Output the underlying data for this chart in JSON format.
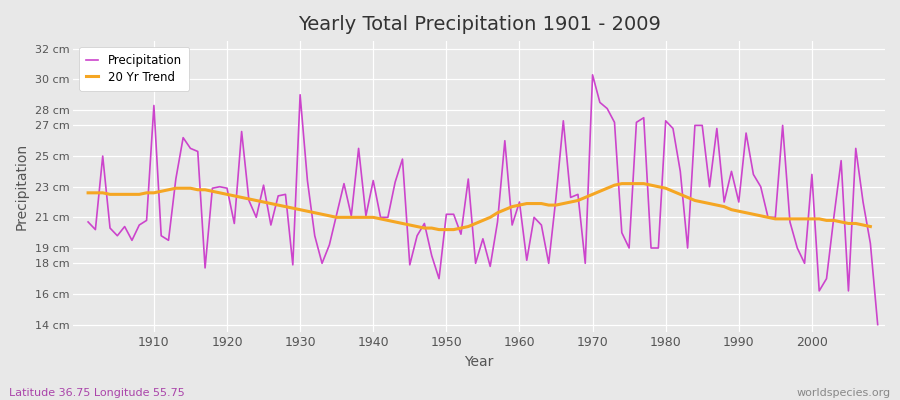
{
  "title": "Yearly Total Precipitation 1901 - 2009",
  "xlabel": "Year",
  "ylabel": "Precipitation",
  "subtitle_left": "Latitude 36.75 Longitude 55.75",
  "subtitle_right": "worldspecies.org",
  "bg_color": "#e8e8e8",
  "plot_bg_color": "#e8e8e8",
  "line_color": "#cc44cc",
  "trend_color": "#f5a623",
  "ylim": [
    13.5,
    32.5
  ],
  "yticks": [
    14,
    16,
    18,
    19,
    21,
    23,
    25,
    27,
    28,
    30,
    32
  ],
  "ytick_labels": [
    "14 cm",
    "16 cm",
    "18 cm",
    "19 cm",
    "21 cm",
    "23 cm",
    "25 cm",
    "27 cm",
    "28 cm",
    "30 cm",
    "32 cm"
  ],
  "xlim": [
    1899,
    2010
  ],
  "xticks": [
    1910,
    1920,
    1930,
    1940,
    1950,
    1960,
    1970,
    1980,
    1990,
    2000
  ],
  "years": [
    1901,
    1902,
    1903,
    1904,
    1905,
    1906,
    1907,
    1908,
    1909,
    1910,
    1911,
    1912,
    1913,
    1914,
    1915,
    1916,
    1917,
    1918,
    1919,
    1920,
    1921,
    1922,
    1923,
    1924,
    1925,
    1926,
    1927,
    1928,
    1929,
    1930,
    1931,
    1932,
    1933,
    1934,
    1935,
    1936,
    1937,
    1938,
    1939,
    1940,
    1941,
    1942,
    1943,
    1944,
    1945,
    1946,
    1947,
    1948,
    1949,
    1950,
    1951,
    1952,
    1953,
    1954,
    1955,
    1956,
    1957,
    1958,
    1959,
    1960,
    1961,
    1962,
    1963,
    1964,
    1965,
    1966,
    1967,
    1968,
    1969,
    1970,
    1971,
    1972,
    1973,
    1974,
    1975,
    1976,
    1977,
    1978,
    1979,
    1980,
    1981,
    1982,
    1983,
    1984,
    1985,
    1986,
    1987,
    1988,
    1989,
    1990,
    1991,
    1992,
    1993,
    1994,
    1995,
    1996,
    1997,
    1998,
    1999,
    2000,
    2001,
    2002,
    2003,
    2004,
    2005,
    2006,
    2007,
    2008,
    2009
  ],
  "precip": [
    20.7,
    20.2,
    25.0,
    20.3,
    19.8,
    20.4,
    19.5,
    20.5,
    20.8,
    28.3,
    19.8,
    19.5,
    23.5,
    26.2,
    25.5,
    25.3,
    17.7,
    22.9,
    23.0,
    22.9,
    20.6,
    26.6,
    22.1,
    21.0,
    23.1,
    20.5,
    22.4,
    22.5,
    17.9,
    29.0,
    23.4,
    19.8,
    18.0,
    19.2,
    21.2,
    23.2,
    21.1,
    25.5,
    21.1,
    23.4,
    21.0,
    21.0,
    23.3,
    24.8,
    17.9,
    19.8,
    20.6,
    18.5,
    17.0,
    21.2,
    21.2,
    19.9,
    23.5,
    18.0,
    19.6,
    17.8,
    20.7,
    26.0,
    20.5,
    22.0,
    18.2,
    21.0,
    20.5,
    18.0,
    22.3,
    27.3,
    22.3,
    22.5,
    18.0,
    30.3,
    28.5,
    28.1,
    27.2,
    20.0,
    19.0,
    27.2,
    27.5,
    19.0,
    19.0,
    27.3,
    26.8,
    24.0,
    19.0,
    27.0,
    27.0,
    23.0,
    26.8,
    22.0,
    24.0,
    22.0,
    26.5,
    23.8,
    23.0,
    21.0,
    21.0,
    27.0,
    20.7,
    19.0,
    18.0,
    23.8,
    16.2,
    17.0,
    21.0,
    24.7,
    16.2,
    25.5,
    22.0,
    19.3,
    14.0
  ],
  "trend": [
    22.6,
    22.6,
    22.6,
    22.5,
    22.5,
    22.5,
    22.5,
    22.5,
    22.6,
    22.6,
    22.7,
    22.8,
    22.9,
    22.9,
    22.9,
    22.8,
    22.8,
    22.7,
    22.6,
    22.5,
    22.4,
    22.3,
    22.2,
    22.1,
    22.0,
    21.9,
    21.8,
    21.7,
    21.6,
    21.5,
    21.4,
    21.3,
    21.2,
    21.1,
    21.0,
    21.0,
    21.0,
    21.0,
    21.0,
    21.0,
    20.9,
    20.8,
    20.7,
    20.6,
    20.5,
    20.4,
    20.3,
    20.3,
    20.2,
    20.2,
    20.2,
    20.3,
    20.4,
    20.6,
    20.8,
    21.0,
    21.3,
    21.5,
    21.7,
    21.8,
    21.9,
    21.9,
    21.9,
    21.8,
    21.8,
    21.9,
    22.0,
    22.1,
    22.3,
    22.5,
    22.7,
    22.9,
    23.1,
    23.2,
    23.2,
    23.2,
    23.2,
    23.1,
    23.0,
    22.9,
    22.7,
    22.5,
    22.3,
    22.1,
    22.0,
    21.9,
    21.8,
    21.7,
    21.5,
    21.4,
    21.3,
    21.2,
    21.1,
    21.0,
    20.9,
    20.9,
    20.9,
    20.9,
    20.9,
    20.9,
    20.9,
    20.8,
    20.8,
    20.7,
    20.6,
    20.6,
    20.5,
    20.4,
    null
  ]
}
